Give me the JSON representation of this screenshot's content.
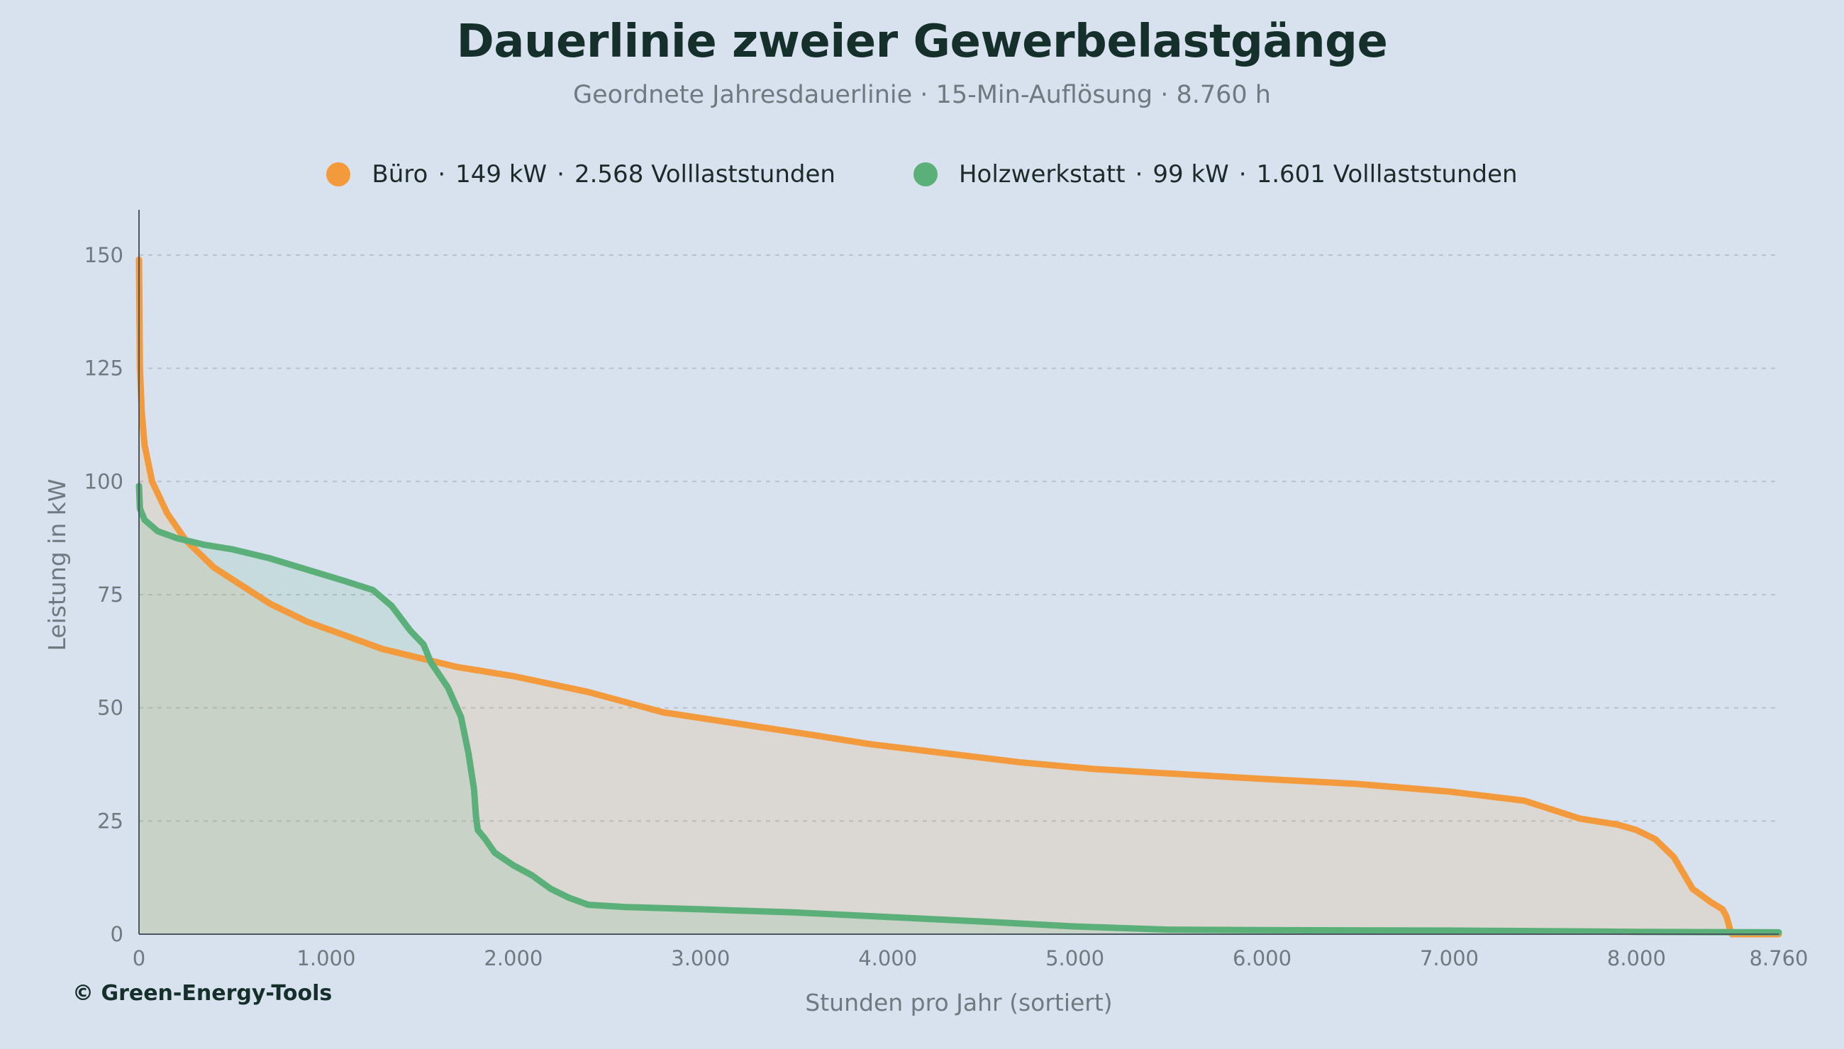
{
  "header": {
    "title": "Dauerlinie zweier Gewerbelastgänge",
    "subtitle": "Geordnete Jahresdauerlinie · 15-Min-Auflösung · 8.760 h"
  },
  "legend": [
    {
      "name": "Büro",
      "peak": "149 kW",
      "hours": "2.568 Volllaststunden",
      "color": "#f39a3c"
    },
    {
      "name": "Holzwerkstatt",
      "peak": "99 kW",
      "hours": "1.601 Volllaststunden",
      "color": "#5bb07a"
    }
  ],
  "footer": {
    "copyright": "© Green-Energy-Tools"
  },
  "chart_data": {
    "type": "area",
    "title": "Dauerlinie zweier Gewerbelastgänge",
    "xlabel": "Stunden pro Jahr (sortiert)",
    "ylabel": "Leistung in kW",
    "xlim": [
      0,
      8760
    ],
    "ylim": [
      0,
      160
    ],
    "x_ticks": [
      0,
      1000,
      2000,
      3000,
      4000,
      5000,
      6000,
      7000,
      8000,
      8760
    ],
    "x_tick_labels": [
      "0",
      "1.000",
      "2.000",
      "3.000",
      "4.000",
      "5.000",
      "6.000",
      "7.000",
      "8.000",
      "8.760"
    ],
    "y_ticks": [
      0,
      25,
      50,
      75,
      100,
      125,
      150
    ],
    "y_tick_labels": [
      "0",
      "25",
      "50",
      "75",
      "100",
      "125",
      "150"
    ],
    "grid": "horizontal dotted",
    "legend_position": "top-center",
    "series": [
      {
        "name": "Büro",
        "color": "#f39a3c",
        "points": [
          [
            0,
            149
          ],
          [
            5,
            125
          ],
          [
            15,
            115
          ],
          [
            30,
            108
          ],
          [
            70,
            100
          ],
          [
            150,
            93
          ],
          [
            250,
            87
          ],
          [
            400,
            81
          ],
          [
            550,
            77
          ],
          [
            700,
            73
          ],
          [
            900,
            69
          ],
          [
            1100,
            66
          ],
          [
            1300,
            63
          ],
          [
            1500,
            61
          ],
          [
            1700,
            59
          ],
          [
            2000,
            57
          ],
          [
            2400,
            53.5
          ],
          [
            2800,
            49
          ],
          [
            3200,
            46.5
          ],
          [
            3600,
            44
          ],
          [
            3900,
            42
          ],
          [
            4300,
            40
          ],
          [
            4700,
            38
          ],
          [
            5100,
            36.5
          ],
          [
            5500,
            35.5
          ],
          [
            6000,
            34.3
          ],
          [
            6500,
            33.2
          ],
          [
            7000,
            31.5
          ],
          [
            7400,
            29.5
          ],
          [
            7700,
            25.5
          ],
          [
            7900,
            24.2
          ],
          [
            8000,
            23
          ],
          [
            8100,
            21
          ],
          [
            8200,
            17
          ],
          [
            8300,
            10
          ],
          [
            8400,
            7
          ],
          [
            8460,
            5.5
          ],
          [
            8480,
            4
          ],
          [
            8500,
            1
          ],
          [
            8510,
            0
          ],
          [
            8760,
            0
          ]
        ]
      },
      {
        "name": "Holzwerkstatt",
        "color": "#5bb07a",
        "points": [
          [
            0,
            99
          ],
          [
            5,
            94
          ],
          [
            30,
            91.5
          ],
          [
            100,
            89
          ],
          [
            200,
            87.5
          ],
          [
            350,
            86
          ],
          [
            500,
            85
          ],
          [
            700,
            83
          ],
          [
            900,
            80.5
          ],
          [
            1100,
            78
          ],
          [
            1250,
            76
          ],
          [
            1350,
            72.5
          ],
          [
            1450,
            67
          ],
          [
            1520,
            64
          ],
          [
            1560,
            60
          ],
          [
            1650,
            54.5
          ],
          [
            1720,
            48
          ],
          [
            1760,
            40
          ],
          [
            1790,
            32
          ],
          [
            1800,
            26
          ],
          [
            1810,
            23
          ],
          [
            1850,
            21
          ],
          [
            1900,
            18
          ],
          [
            2000,
            15.2
          ],
          [
            2100,
            13
          ],
          [
            2200,
            10
          ],
          [
            2300,
            8
          ],
          [
            2400,
            6.5
          ],
          [
            2600,
            6
          ],
          [
            3000,
            5.5
          ],
          [
            3500,
            4.8
          ],
          [
            4000,
            3.8
          ],
          [
            4500,
            2.8
          ],
          [
            5000,
            1.7
          ],
          [
            5500,
            1
          ],
          [
            6000,
            0.9
          ],
          [
            7000,
            0.8
          ],
          [
            7800,
            0.6
          ],
          [
            8000,
            0.5
          ],
          [
            8760,
            0.4
          ]
        ]
      }
    ]
  }
}
